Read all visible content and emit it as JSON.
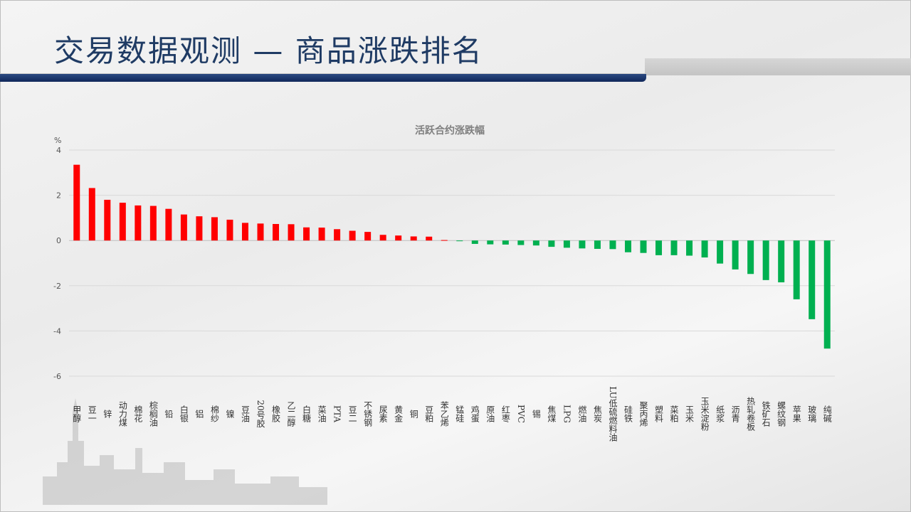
{
  "header": {
    "title": "交易数据观测 — 商品涨跌排名"
  },
  "colors": {
    "positive": "#ff0000",
    "negative": "#00b050",
    "title_blue": "#1f3b64"
  },
  "chart_data": {
    "type": "bar",
    "title": "活跃合约涨跌幅",
    "ylabel": "%",
    "ylim": [
      -6,
      4
    ],
    "yticks": [
      -6,
      -4,
      -2,
      0,
      2,
      4
    ],
    "grid": true,
    "categories": [
      "甲醇",
      "豆一",
      "锌",
      "动力煤",
      "棉花",
      "棕榈油",
      "铅",
      "白银",
      "铝",
      "棉纱",
      "镍",
      "豆油",
      "20号胶",
      "橡胶",
      "乙二醇",
      "白糖",
      "菜油",
      "PTA",
      "豆二",
      "不锈钢",
      "尿素",
      "黄金",
      "铜",
      "豆粕",
      "苯乙烯",
      "锰硅",
      "鸡蛋",
      "原油",
      "红枣",
      "PVC",
      "锡",
      "焦煤",
      "LPG",
      "燃油",
      "焦炭",
      "LU低硫燃料油",
      "硅铁",
      "聚丙烯",
      "塑料",
      "菜粕",
      "玉米",
      "玉米淀粉",
      "纸浆",
      "沥青",
      "热轧卷板",
      "铁矿石",
      "螺纹钢",
      "苹果",
      "玻璃",
      "纯碱"
    ],
    "values": [
      3.35,
      2.32,
      1.8,
      1.67,
      1.55,
      1.53,
      1.4,
      1.15,
      1.07,
      1.03,
      0.92,
      0.78,
      0.75,
      0.73,
      0.72,
      0.58,
      0.57,
      0.5,
      0.43,
      0.38,
      0.25,
      0.22,
      0.18,
      0.17,
      0.02,
      -0.02,
      -0.15,
      -0.17,
      -0.18,
      -0.2,
      -0.22,
      -0.28,
      -0.32,
      -0.35,
      -0.37,
      -0.38,
      -0.52,
      -0.55,
      -0.65,
      -0.65,
      -0.67,
      -0.75,
      -1.02,
      -1.28,
      -1.48,
      -1.75,
      -1.85,
      -2.6,
      -3.48,
      -4.78
    ]
  }
}
